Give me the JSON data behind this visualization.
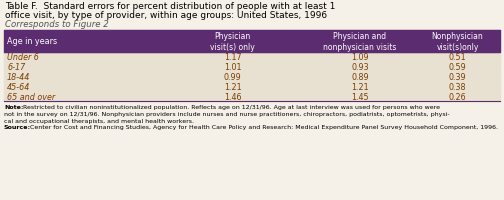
{
  "title_line1": "Table F.  Standard errors for percent distribution of people with at least 1",
  "title_line2": "office visit, by type of provider, within age groups: United States, 1996",
  "title_line3": "Corresponds to Figure 2",
  "col_headers": [
    "Age in years",
    "Physician\nvisit(s) only",
    "Physician and\nnonphysician visits",
    "Nonphysician\nvisit(s)only"
  ],
  "rows": [
    [
      "Under 6",
      "1.17",
      "1.09",
      "0.51"
    ],
    [
      "6-17",
      "1.01",
      "0.93",
      "0.59"
    ],
    [
      "18-44",
      "0.99",
      "0.89",
      "0.39"
    ],
    [
      "45-64",
      "1.21",
      "1.21",
      "0.38"
    ],
    [
      "65 and over",
      "1.46",
      "1.45",
      "0.26"
    ]
  ],
  "note_lines": [
    "not in the survey on 12/31/96. Nonphysician providers include nurses and nurse practitioners, chiropractors, podiatrists, optometrists, physi-",
    "cal and occupational therapists, and mental health workers."
  ],
  "note_bold": "Note:",
  "note_rest": " Restricted to civilian noninstitutionalized population. Reflects age on 12/31/96. Age at last interview was used for persons who were",
  "source_bold": "Source:",
  "source_rest": " Center for Cost and Financing Studies, Agency for Health Care Policy and Research: Medical Expenditure Panel Survey Household Component, 1996.",
  "header_bg": "#5b2c6f",
  "header_text_color": "#ffffff",
  "row_bg": "#e8e0d0",
  "row_text_color": "#7b3f00",
  "border_color": "#5b2c6f",
  "title_color": "#000000",
  "title_italic_color": "#555555",
  "note_color": "#000000",
  "fig_bg": "#f5f0e8"
}
